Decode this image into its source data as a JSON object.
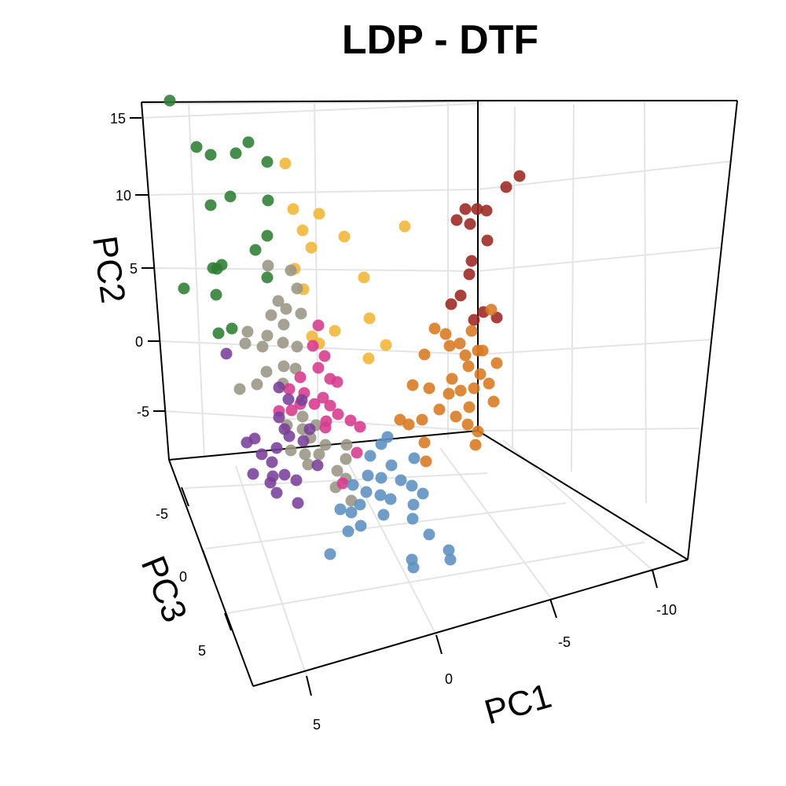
{
  "chart_data": {
    "type": "scatter",
    "subtype": "3d-scatter",
    "title": "LDP - DTF",
    "axes": {
      "x": {
        "label": "PC1",
        "ticks": [
          5,
          0,
          -5,
          -10
        ]
      },
      "y": {
        "label": "PC2",
        "ticks": [
          15,
          10,
          5,
          0,
          -5
        ]
      },
      "z": {
        "label": "PC3",
        "ticks": [
          -5,
          0,
          5
        ]
      }
    },
    "tick_labels": {
      "pc1": [
        "5",
        "0",
        "-5",
        "-10"
      ],
      "pc2": [
        "15",
        "10",
        "5",
        "0",
        "-5"
      ],
      "pc3": [
        "-5",
        "0",
        "5"
      ]
    },
    "grid": true,
    "legend": "none",
    "series": [
      {
        "color": "#2e7d32",
        "points": [
          [
            216,
            128
          ],
          [
            250,
            187
          ],
          [
            268,
            197
          ],
          [
            300,
            195
          ],
          [
            316,
            181
          ],
          [
            340,
            206
          ],
          [
            293,
            250
          ],
          [
            268,
            261
          ],
          [
            341,
            255
          ],
          [
            340,
            300
          ],
          [
            325,
            318
          ],
          [
            282,
            337
          ],
          [
            271,
            341
          ],
          [
            276,
            342
          ],
          [
            234,
            367
          ],
          [
            275,
            375
          ],
          [
            295,
            418
          ],
          [
            278,
            424
          ],
          [
            340,
            353
          ]
        ]
      },
      {
        "color": "#f0b535",
        "points": [
          [
            363,
            208
          ],
          [
            373,
            266
          ],
          [
            406,
            272
          ],
          [
            385,
            293
          ],
          [
            438,
            301
          ],
          [
            515,
            288
          ],
          [
            396,
            315
          ],
          [
            375,
            342
          ],
          [
            463,
            353
          ],
          [
            386,
            368
          ],
          [
            470,
            405
          ],
          [
            426,
            421
          ],
          [
            397,
            428
          ],
          [
            406,
            437
          ],
          [
            491,
            439
          ],
          [
            469,
            456
          ]
        ]
      },
      {
        "color": "#9c2620",
        "points": [
          [
            661,
            224
          ],
          [
            644,
            238
          ],
          [
            592,
            266
          ],
          [
            607,
            266
          ],
          [
            619,
            268
          ],
          [
            581,
            280
          ],
          [
            598,
            285
          ],
          [
            620,
            306
          ],
          [
            600,
            332
          ],
          [
            597,
            349
          ],
          [
            586,
            376
          ],
          [
            574,
            387
          ],
          [
            603,
            407
          ],
          [
            615,
            397
          ],
          [
            632,
            404
          ]
        ]
      },
      {
        "color": "#d87920",
        "points": [
          [
            553,
            418
          ],
          [
            567,
            425
          ],
          [
            572,
            440
          ],
          [
            585,
            437
          ],
          [
            600,
            421
          ],
          [
            625,
            394
          ],
          [
            608,
            446
          ],
          [
            592,
            452
          ],
          [
            614,
            446
          ],
          [
            540,
            451
          ],
          [
            596,
            466
          ],
          [
            632,
            462
          ],
          [
            611,
            476
          ],
          [
            622,
            488
          ],
          [
            603,
            494
          ],
          [
            586,
            497
          ],
          [
            575,
            482
          ],
          [
            525,
            490
          ],
          [
            546,
            494
          ],
          [
            571,
            501
          ],
          [
            628,
            511
          ],
          [
            597,
            518
          ],
          [
            559,
            521
          ],
          [
            537,
            534
          ],
          [
            580,
            530
          ],
          [
            509,
            534
          ],
          [
            520,
            540
          ],
          [
            595,
            540
          ],
          [
            608,
            549
          ],
          [
            540,
            563
          ],
          [
            605,
            566
          ],
          [
            542,
            587
          ]
        ]
      },
      {
        "color": "#999585",
        "points": [
          [
            341,
            338
          ],
          [
            370,
            344
          ],
          [
            378,
            367
          ],
          [
            354,
            383
          ],
          [
            364,
            393
          ],
          [
            345,
            401
          ],
          [
            361,
            413
          ],
          [
            383,
            399
          ],
          [
            315,
            422
          ],
          [
            340,
            427
          ],
          [
            360,
            436
          ],
          [
            378,
            441
          ],
          [
            312,
            437
          ],
          [
            334,
            441
          ],
          [
            361,
            466
          ],
          [
            376,
            469
          ],
          [
            339,
            473
          ],
          [
            327,
            489
          ],
          [
            305,
            495
          ],
          [
            360,
            488
          ],
          [
            385,
            530
          ],
          [
            365,
            541
          ],
          [
            385,
            546
          ],
          [
            402,
            541
          ],
          [
            395,
            557
          ],
          [
            414,
            566
          ],
          [
            370,
            573
          ],
          [
            441,
            566
          ],
          [
            388,
            578
          ],
          [
            406,
            578
          ],
          [
            440,
            584
          ],
          [
            392,
            591
          ],
          [
            429,
            599
          ],
          [
            440,
            609
          ],
          [
            427,
            620
          ],
          [
            447,
            637
          ]
        ]
      },
      {
        "color": "#d63a8c",
        "points": [
          [
            405,
            414
          ],
          [
            398,
            440
          ],
          [
            413,
            453
          ],
          [
            405,
            468
          ],
          [
            420,
            482
          ],
          [
            382,
            480
          ],
          [
            429,
            486
          ],
          [
            368,
            495
          ],
          [
            387,
            500
          ],
          [
            411,
            506
          ],
          [
            400,
            514
          ],
          [
            382,
            514
          ],
          [
            420,
            516
          ],
          [
            430,
            527
          ],
          [
            446,
            535
          ],
          [
            415,
            536
          ],
          [
            371,
            522
          ],
          [
            355,
            523
          ],
          [
            414,
            544
          ],
          [
            458,
            543
          ],
          [
            454,
            576
          ],
          [
            436,
            615
          ]
        ]
      },
      {
        "color": "#7a3f9a",
        "points": [
          [
            288,
            450
          ],
          [
            355,
            493
          ],
          [
            367,
            508
          ],
          [
            384,
            509
          ],
          [
            355,
            531
          ],
          [
            362,
            546
          ],
          [
            368,
            555
          ],
          [
            394,
            546
          ],
          [
            386,
            561
          ],
          [
            324,
            558
          ],
          [
            314,
            563
          ],
          [
            352,
            570
          ],
          [
            333,
            578
          ],
          [
            346,
            588
          ],
          [
            404,
            592
          ],
          [
            322,
            603
          ],
          [
            347,
            606
          ],
          [
            362,
            604
          ],
          [
            344,
            614
          ],
          [
            377,
            611
          ],
          [
            352,
            627
          ],
          [
            379,
            640
          ]
        ]
      },
      {
        "color": "#5c90c0",
        "points": [
          [
            493,
            556
          ],
          [
            485,
            565
          ],
          [
            527,
            583
          ],
          [
            471,
            580
          ],
          [
            498,
            592
          ],
          [
            468,
            605
          ],
          [
            485,
            608
          ],
          [
            510,
            611
          ],
          [
            449,
            617
          ],
          [
            466,
            626
          ],
          [
            484,
            630
          ],
          [
            524,
            618
          ],
          [
            538,
            628
          ],
          [
            497,
            635
          ],
          [
            526,
            642
          ],
          [
            458,
            642
          ],
          [
            433,
            648
          ],
          [
            488,
            655
          ],
          [
            525,
            660
          ],
          [
            443,
            676
          ],
          [
            459,
            669
          ],
          [
            546,
            680
          ],
          [
            420,
            705
          ],
          [
            571,
            700
          ],
          [
            573,
            712
          ],
          [
            524,
            712
          ],
          [
            526,
            722
          ],
          [
            447,
            652
          ]
        ]
      }
    ]
  }
}
